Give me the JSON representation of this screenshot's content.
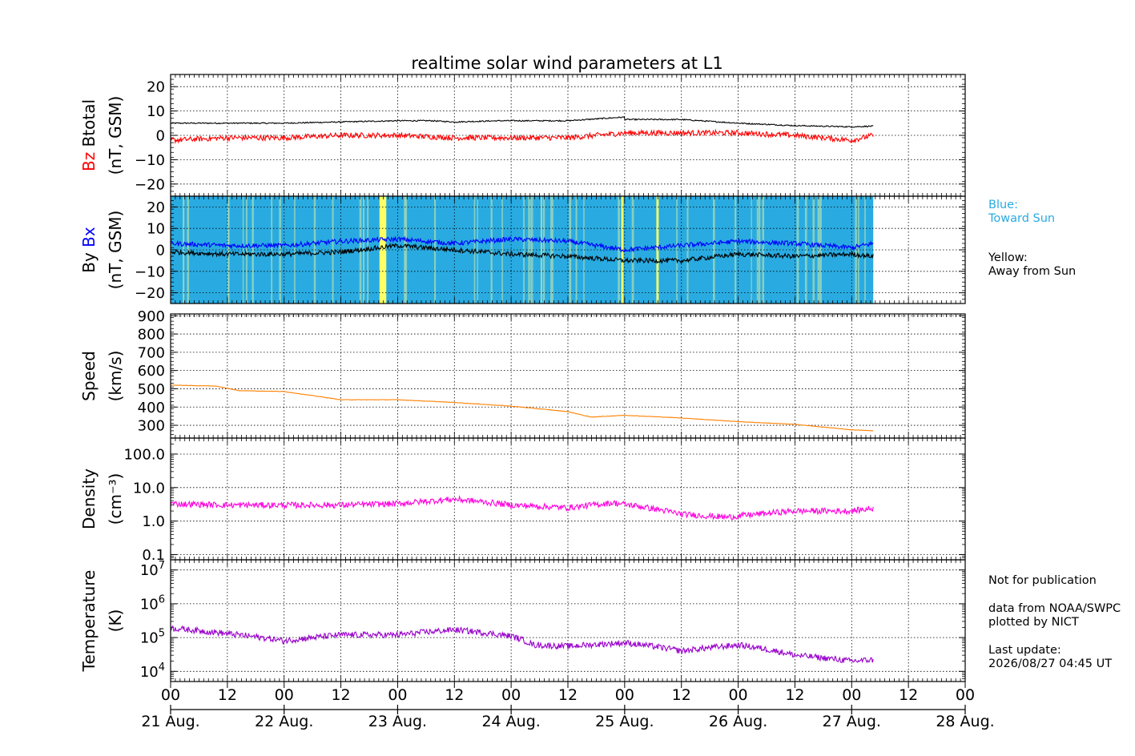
{
  "chart_data": {
    "type": "line",
    "title": "realtime solar wind parameters at L1",
    "x_axis": {
      "ticks": [
        "00",
        "12",
        "00",
        "12",
        "00",
        "12",
        "00",
        "12",
        "00",
        "12",
        "00",
        "12",
        "00",
        "12",
        "00"
      ],
      "day_labels": [
        "21 Aug.",
        "22 Aug.",
        "23 Aug.",
        "24 Aug.",
        "25 Aug.",
        "26 Aug.",
        "27 Aug.",
        "28 Aug."
      ],
      "range_days": [
        0,
        7
      ],
      "data_end_day": 6.19
    },
    "panels": [
      {
        "id": "bfield",
        "ylabel_parts": [
          "Bz",
          "Btotal",
          "(nT, GSM)"
        ],
        "ylim": [
          -25,
          25
        ],
        "yticks": [
          20,
          10,
          0,
          -10,
          -20
        ],
        "ytick_labels": [
          "20",
          "10",
          "0",
          "−10",
          "−20"
        ],
        "series": [
          {
            "name": "Btotal",
            "color": "#000000",
            "x": [
              0,
              0.5,
              1,
              1.5,
              2,
              2.3,
              2.5,
              2.9,
              3,
              3.5,
              4,
              3.9,
              4.5,
              5,
              5.5,
              6,
              6.19
            ],
            "y": [
              5,
              5,
              5,
              5.5,
              6,
              6,
              5.5,
              6,
              6,
              6,
              7.5,
              6.5,
              6.5,
              5,
              4,
              3.5,
              3.8
            ]
          },
          {
            "name": "Bz",
            "color": "#ff0000",
            "x": [
              0,
              0.5,
              1,
              1.5,
              2,
              2.5,
              3,
              3.5,
              4,
              4.5,
              5,
              5.5,
              6,
              6.19
            ],
            "y": [
              -2,
              -1,
              -1,
              0,
              0,
              -1,
              -1,
              -1,
              1,
              1,
              1,
              0,
              -2,
              0
            ]
          }
        ]
      },
      {
        "id": "bxby",
        "ylabel_parts": [
          "By",
          "Bx",
          "(nT, GSM)"
        ],
        "ylim": [
          -25,
          25
        ],
        "yticks": [
          20,
          10,
          0,
          -10,
          -20
        ],
        "ytick_labels": [
          "20",
          "10",
          "0",
          "−10",
          "−20"
        ],
        "background_legend": {
          "blue": "Blue:\nToward Sun",
          "yellow": "Yellow:\nAway from Sun"
        },
        "away_from_sun_intervals": [
          [
            1.84,
            1.9
          ],
          [
            3.97,
            3.99
          ],
          [
            4.28,
            4.3
          ]
        ],
        "series": [
          {
            "name": "Bx",
            "color": "#0000ff",
            "x": [
              0,
              0.5,
              1,
              1.5,
              2,
              2.5,
              3,
              3.5,
              4,
              4.5,
              5,
              5.5,
              6,
              6.19
            ],
            "y": [
              3,
              2,
              2,
              4,
              5,
              3,
              5,
              4,
              0,
              2,
              4,
              3,
              1,
              3
            ]
          },
          {
            "name": "By",
            "color": "#000000",
            "x": [
              0,
              0.5,
              1,
              1.5,
              2,
              2.5,
              3,
              3.5,
              4,
              4.5,
              5,
              5.5,
              6,
              6.19
            ],
            "y": [
              -1,
              -2,
              -2,
              -1,
              2,
              0,
              -2,
              -3,
              -5,
              -5,
              -2,
              -3,
              -2,
              -3
            ]
          }
        ]
      },
      {
        "id": "speed",
        "ylabel_parts": [
          "Speed",
          "(km/s)"
        ],
        "ylim": [
          230,
          910
        ],
        "yticks": [
          900,
          800,
          700,
          600,
          500,
          400,
          300
        ],
        "ytick_labels": [
          "900",
          "800",
          "700",
          "600",
          "500",
          "400",
          "300"
        ],
        "series": [
          {
            "name": "Speed",
            "color": "#ff8000",
            "x": [
              0,
              0.4,
              0.6,
              1,
              1.5,
              2,
              2.5,
              3,
              3.5,
              3.7,
              4,
              4.5,
              5,
              5.5,
              6,
              6.19
            ],
            "y": [
              520,
              515,
              490,
              485,
              440,
              440,
              425,
              405,
              375,
              345,
              355,
              340,
              320,
              305,
              275,
              270
            ]
          }
        ]
      },
      {
        "id": "density",
        "ylabel_parts": [
          "Density",
          "(cm⁻³)"
        ],
        "log": true,
        "ylim": [
          0.07,
          300
        ],
        "yticks": [
          100,
          10,
          1,
          0.1
        ],
        "ytick_labels": [
          "100.0",
          "10.0",
          "1.0",
          "0.1"
        ],
        "series": [
          {
            "name": "Density",
            "color": "#ff00dd",
            "x": [
              0,
              0.5,
              1,
              1.5,
              2,
              2.3,
              2.5,
              3,
              3.5,
              3.9,
              4.2,
              4.5,
              4.9,
              5.5,
              6,
              6.19
            ],
            "y": [
              3.3,
              3,
              3,
              3,
              3.3,
              4,
              4.5,
              3,
              2.5,
              3.5,
              2.5,
              1.6,
              1.3,
              2,
              2,
              2.4
            ]
          }
        ]
      },
      {
        "id": "temperature",
        "ylabel_parts": [
          "Temperature",
          "(K)"
        ],
        "log": true,
        "ylim": [
          5000,
          20000000
        ],
        "yticks": [
          10000000,
          1000000,
          100000,
          10000
        ],
        "ytick_labels": [
          "10⁷",
          "10⁶",
          "10⁵",
          "10⁴"
        ],
        "series": [
          {
            "name": "Temperature",
            "color": "#9900cc",
            "x": [
              0,
              0.5,
              1,
              1.5,
              2,
              2.5,
              3,
              3.2,
              3.5,
              4,
              4.5,
              5,
              5.5,
              6,
              6.19
            ],
            "y": [
              190000,
              130000,
              80000,
              120000,
              120000,
              170000,
              110000,
              60000,
              55000,
              70000,
              40000,
              60000,
              30000,
              20000,
              22000
            ]
          }
        ]
      }
    ]
  },
  "side_notes": {
    "blue_legend": "Blue:\nToward Sun",
    "yellow_legend": "Yellow:\nAway from Sun",
    "publication": "Not for publication",
    "source": "data from NOAA/SWPC\nplotted by NICT",
    "update": "Last update:\n2026/08/27 04:45 UT"
  },
  "colors": {
    "toward_sun": "#29abe2",
    "away_from_sun": "#ffff66",
    "blue_legend_text": "#29abe2"
  }
}
